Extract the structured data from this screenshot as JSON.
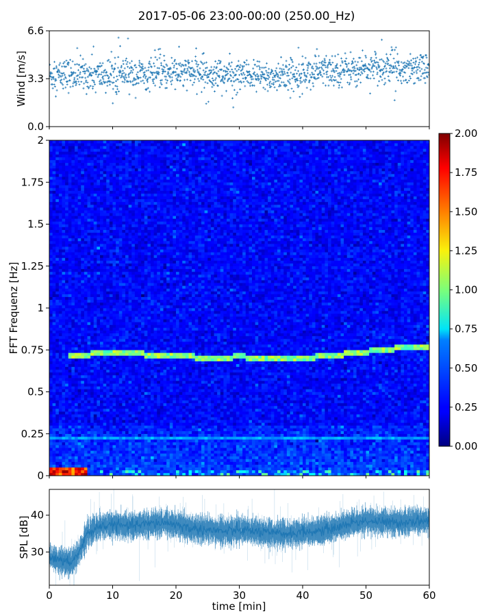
{
  "title": "2017-05-06 23:00-00:00 (250.00_Hz)",
  "colors": {
    "series": "#1f77b4",
    "axis": "#000000"
  },
  "chart_data": [
    {
      "panel": "wind",
      "type": "scatter",
      "ylabel": "Wind [m/s]",
      "xlim": [
        0,
        60
      ],
      "ylim": [
        0,
        6.6
      ],
      "yticks": [
        "0.0",
        "3.3",
        "6.6"
      ],
      "marker": "+",
      "summary": {
        "median": 3.6,
        "typical_range": [
          2.4,
          4.8
        ],
        "max": 6.5,
        "min": 1.1
      },
      "trend": [
        {
          "x": 0,
          "y": 3.5
        },
        {
          "x": 5,
          "y": 3.6
        },
        {
          "x": 10,
          "y": 3.5
        },
        {
          "x": 15,
          "y": 3.6
        },
        {
          "x": 20,
          "y": 3.7
        },
        {
          "x": 25,
          "y": 3.7
        },
        {
          "x": 30,
          "y": 3.5
        },
        {
          "x": 35,
          "y": 3.4
        },
        {
          "x": 40,
          "y": 3.7
        },
        {
          "x": 45,
          "y": 3.9
        },
        {
          "x": 50,
          "y": 4.0
        },
        {
          "x": 55,
          "y": 4.1
        },
        {
          "x": 60,
          "y": 4.1
        }
      ]
    },
    {
      "panel": "spectrogram",
      "type": "heatmap",
      "ylabel": "FFT Frequenz [Hz]",
      "xlim": [
        0,
        60
      ],
      "ylim": [
        0,
        2
      ],
      "yticks": [
        "0",
        "0.25",
        "0.5",
        "0.75",
        "1",
        "1.25",
        "1.5",
        "1.75",
        "2"
      ],
      "colormap": "jet",
      "colorbar": {
        "range": [
          0,
          2
        ],
        "ticks": [
          "0.00",
          "0.25",
          "0.50",
          "0.75",
          "1.00",
          "1.25",
          "1.50",
          "1.75",
          "2.00"
        ]
      },
      "background_level": 0.25,
      "tonal_line_main": [
        {
          "x": 3,
          "y": 0.72
        },
        {
          "x": 10,
          "y": 0.73
        },
        {
          "x": 20,
          "y": 0.72
        },
        {
          "x": 25,
          "y": 0.7
        },
        {
          "x": 30,
          "y": 0.71
        },
        {
          "x": 35,
          "y": 0.7
        },
        {
          "x": 40,
          "y": 0.7
        },
        {
          "x": 45,
          "y": 0.72
        },
        {
          "x": 50,
          "y": 0.74
        },
        {
          "x": 55,
          "y": 0.76
        },
        {
          "x": 60,
          "y": 0.77
        }
      ],
      "tonal_line_main_level": 1.0,
      "tonal_line_secondary": {
        "y": 0.23,
        "x_range": [
          0,
          60
        ],
        "level": 0.6
      },
      "low_frequency_hotspot": {
        "x_range": [
          0,
          6
        ],
        "y_range": [
          0,
          0.05
        ],
        "level": 2.0
      }
    },
    {
      "panel": "spl",
      "type": "line",
      "ylabel": "SPL [dB]",
      "xlabel": "time [min]",
      "xlim": [
        0,
        60
      ],
      "ylim": [
        21,
        47
      ],
      "xticks": [
        "0",
        "10",
        "20",
        "30",
        "40",
        "50",
        "60"
      ],
      "yticks": [
        "30",
        "40"
      ],
      "series": [
        {
          "x": [
            0,
            1,
            2,
            3,
            4,
            5,
            6,
            8,
            10,
            12,
            15,
            18,
            20,
            22,
            25,
            28,
            30,
            33,
            35,
            38,
            40,
            42,
            45,
            48,
            50,
            53,
            55,
            58,
            60
          ],
          "y": [
            29,
            28,
            27.5,
            27,
            28,
            31,
            35,
            37,
            37.5,
            37,
            37.5,
            38,
            37.5,
            36.5,
            36,
            35.5,
            36,
            35.5,
            35,
            35,
            35.5,
            35.5,
            36.5,
            38,
            38.5,
            38,
            38,
            38.5,
            38.5
          ]
        }
      ],
      "band_halfwidth": 2.5
    }
  ]
}
